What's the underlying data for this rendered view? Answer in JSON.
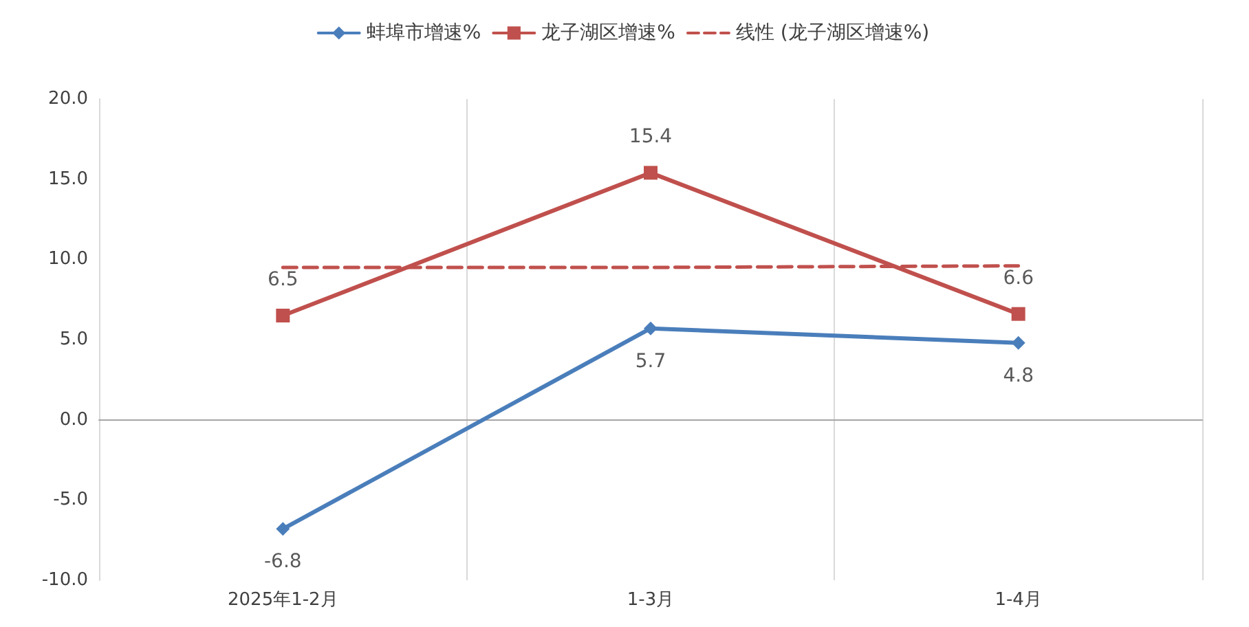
{
  "chart_data": {
    "type": "line",
    "categories": [
      "2025年1-2月",
      "1-3月",
      "1-4月"
    ],
    "series": [
      {
        "name": "蚌埠市增速%",
        "color": "#4a7ebb",
        "marker": "diamond",
        "values": [
          -6.8,
          5.7,
          4.8
        ],
        "value_labels": [
          "-6.8",
          "5.7",
          "4.8"
        ]
      },
      {
        "name": "龙子湖区增速%",
        "color": "#c0504d",
        "marker": "square",
        "values": [
          6.5,
          15.4,
          6.6
        ],
        "value_labels": [
          "6.5",
          "15.4",
          "6.6"
        ]
      },
      {
        "name": "线性 (龙子湖区增速%)",
        "color": "#c0504d",
        "marker": "none",
        "line_style": "dashed",
        "values": [
          9.5,
          9.5,
          9.6
        ]
      }
    ],
    "ylim": [
      -10,
      20
    ],
    "yticks": [
      {
        "value": -10,
        "label": "-10.0"
      },
      {
        "value": -5,
        "label": "-5.0"
      },
      {
        "value": 0,
        "label": "0.0"
      },
      {
        "value": 5,
        "label": "5.0"
      },
      {
        "value": 10,
        "label": "10.0"
      },
      {
        "value": 15,
        "label": "15.0"
      },
      {
        "value": 20,
        "label": "20.0"
      }
    ],
    "grid": "x",
    "legend": "top"
  }
}
